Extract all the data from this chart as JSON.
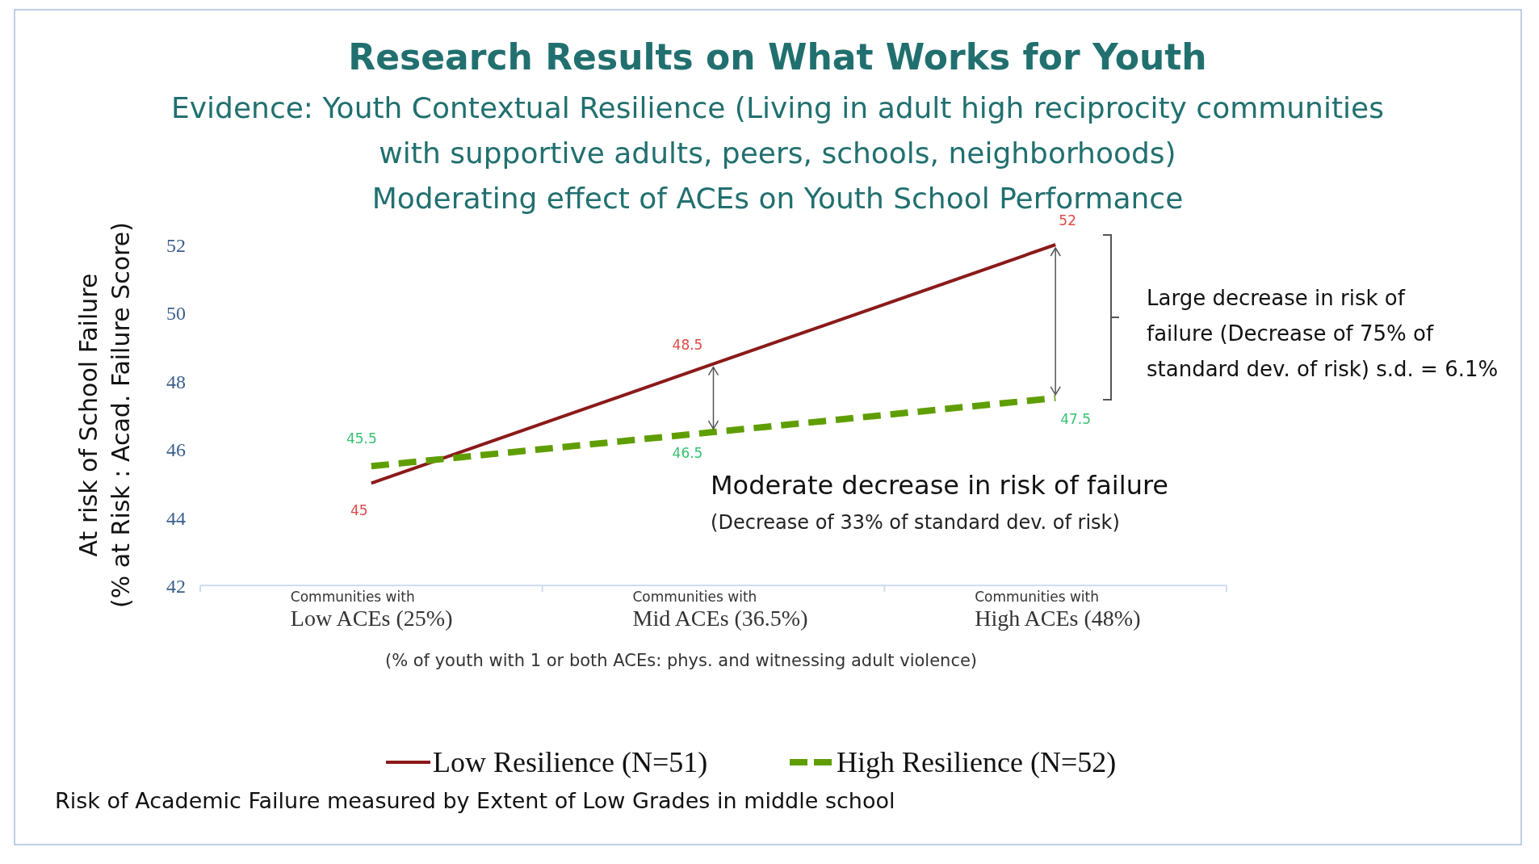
{
  "chart_data": {
    "type": "line",
    "title": "Research Results on What Works for Youth",
    "subtitle": "Evidence: Youth Contextual Resilience (Living in adult high reciprocity communities\nwith supportive adults, peers, schools, neighborhoods)\nModerating effect of ACEs on Youth School Performance",
    "ylabel": "At risk of School Failure\n(% at Risk : Acad. Failure Score)",
    "xlabel": "(% of youth with 1 or both ACEs: phys. and witnessing adult violence)",
    "categories": [
      "Communities with\nLow ACEs (25%)",
      "Communities with\nMid ACEs (36.5%)",
      "Communities with\nHigh ACEs (48%)"
    ],
    "series": [
      {
        "name": "Low Resilience (N=51)",
        "color": "#8b1a1a",
        "values": [
          45,
          48.5,
          52
        ],
        "line_style": "solid"
      },
      {
        "name": "High Resilience (N=52)",
        "color": "#5f9e00",
        "values": [
          45.5,
          46.5,
          47.5
        ],
        "line_style": "dashed"
      }
    ],
    "ylim": [
      42,
      52
    ],
    "yticks": [
      42,
      44,
      46,
      48,
      50,
      52
    ],
    "grid": false,
    "legend": "bottom",
    "data_labels": true,
    "marker": "none",
    "annotations": [
      {
        "text": "Moderate decrease in risk of failure\n(Decrease of 33% of standard dev. of risk)",
        "x": "Communities with\nMid ACEs (36.5%)",
        "y": 46.5
      },
      "Large decrease in risk of\nfailure (Decrease of 75% of\nstandard dev. of risk) s.d. = 6.1%",
      "Risk of Academic Failure measured by Extent of Low Grades in middle school"
    ]
  }
}
